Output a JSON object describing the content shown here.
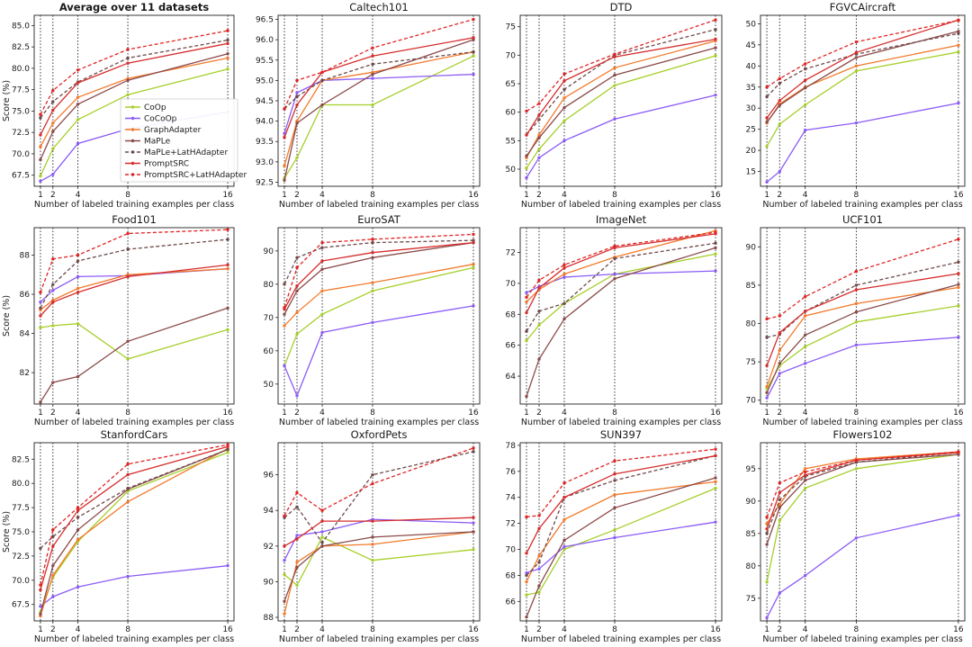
{
  "chart_data": {
    "type": "line",
    "x": [
      1,
      2,
      4,
      8,
      16
    ],
    "xlabel": "Number of labeled training examples per class",
    "ylabel": "Score (%)",
    "methods": [
      {
        "name": "CoOp",
        "color": "#a6cf2a",
        "dashed": false
      },
      {
        "name": "CoCoOp",
        "color": "#8b5cf6",
        "dashed": false
      },
      {
        "name": "GraphAdapter",
        "color": "#f27a2c",
        "dashed": false
      },
      {
        "name": "MaPLe",
        "color": "#8b4a4a",
        "dashed": false
      },
      {
        "name": "MaPLe+LatHAdapter",
        "color": "#6e4a4a",
        "dashed": true
      },
      {
        "name": "PromptSRC",
        "color": "#d62d2d",
        "dashed": false
      },
      {
        "name": "PromptSRC+LatHAdapter",
        "color": "#e02424",
        "dashed": true
      }
    ],
    "panels": [
      {
        "title": "Average over 11 datasets",
        "bold": true,
        "ylim": [
          66.2,
          86.2
        ],
        "yticks": [
          "67.5",
          "70.0",
          "72.5",
          "75.0",
          "77.5",
          "80.0",
          "82.5",
          "85.0"
        ],
        "legend": true,
        "series": [
          [
            67.4,
            70.6,
            74.0,
            76.9,
            79.9
          ],
          [
            66.8,
            67.6,
            71.2,
            72.9,
            74.9
          ],
          [
            70.8,
            73.6,
            76.6,
            78.8,
            81.2
          ],
          [
            69.3,
            72.6,
            75.8,
            78.6,
            81.7
          ],
          [
            74.2,
            76.1,
            78.4,
            81.2,
            83.3
          ],
          [
            72.2,
            75.1,
            78.3,
            80.6,
            82.9
          ],
          [
            74.6,
            77.4,
            79.8,
            82.2,
            84.4
          ]
        ]
      },
      {
        "title": "Caltech101",
        "bold": false,
        "ylim": [
          92.4,
          96.6
        ],
        "yticks": [
          "92.5",
          "93.0",
          "93.5",
          "94.0",
          "94.5",
          "95.0",
          "95.5",
          "96.0",
          "96.5"
        ],
        "series": [
          [
            92.6,
            93.1,
            94.4,
            94.4,
            95.6
          ],
          [
            93.7,
            94.7,
            95.0,
            95.05,
            95.15
          ],
          [
            92.9,
            94.0,
            95.0,
            95.2,
            95.7
          ],
          [
            92.55,
            93.95,
            94.4,
            95.15,
            96.0
          ],
          [
            94.3,
            94.6,
            95.0,
            95.4,
            95.7
          ],
          [
            93.6,
            94.4,
            95.2,
            95.6,
            96.05
          ],
          [
            94.3,
            95.0,
            95.2,
            95.8,
            96.5
          ]
        ]
      },
      {
        "title": "DTD",
        "bold": false,
        "ylim": [
          47.0,
          77.0
        ],
        "yticks": [
          "50",
          "55",
          "60",
          "65",
          "70",
          "75"
        ],
        "series": [
          [
            50.2,
            53.5,
            58.5,
            64.7,
            69.9
          ],
          [
            48.5,
            52.0,
            55.0,
            58.8,
            63.0
          ],
          [
            52.0,
            56.0,
            62.5,
            67.8,
            72.5
          ],
          [
            52.3,
            55.5,
            60.8,
            66.5,
            71.3
          ],
          [
            56.0,
            58.7,
            64.0,
            70.0,
            74.5
          ],
          [
            56.0,
            59.5,
            65.5,
            69.7,
            72.8
          ],
          [
            60.2,
            61.5,
            66.7,
            70.2,
            76.2
          ]
        ]
      },
      {
        "title": "FGVCAircraft",
        "bold": false,
        "ylim": [
          11.5,
          52.0
        ],
        "yticks": [
          "15",
          "20",
          "25",
          "30",
          "35",
          "40",
          "45",
          "50"
        ],
        "series": [
          [
            21.0,
            26.2,
            30.8,
            38.8,
            43.3
          ],
          [
            12.5,
            15.0,
            24.8,
            26.5,
            31.2
          ],
          [
            26.5,
            31.0,
            35.0,
            40.0,
            44.9
          ],
          [
            26.7,
            30.7,
            34.8,
            42.0,
            48.2
          ],
          [
            32.7,
            35.9,
            39.3,
            42.8,
            47.7
          ],
          [
            27.7,
            31.8,
            36.6,
            43.2,
            50.9
          ],
          [
            35.0,
            37.0,
            40.5,
            45.7,
            50.8
          ]
        ]
      },
      {
        "title": "Food101",
        "bold": false,
        "ylim": [
          80.4,
          89.4
        ],
        "yticks": [
          "82",
          "84",
          "86",
          "88"
        ],
        "series": [
          [
            84.3,
            84.4,
            84.5,
            82.7,
            84.2
          ],
          [
            85.6,
            86.2,
            86.9,
            86.95,
            87.3
          ],
          [
            85.2,
            85.7,
            86.3,
            87.0,
            87.3
          ],
          [
            80.5,
            81.5,
            81.8,
            83.6,
            85.3
          ],
          [
            85.3,
            86.5,
            87.7,
            88.3,
            88.8
          ],
          [
            84.9,
            85.6,
            86.1,
            86.9,
            87.5
          ],
          [
            86.1,
            87.8,
            88.0,
            89.1,
            89.3
          ]
        ]
      },
      {
        "title": "EuroSAT",
        "bold": false,
        "ylim": [
          44.0,
          97.0
        ],
        "yticks": [
          "50",
          "60",
          "70",
          "80",
          "90"
        ],
        "series": [
          [
            55.5,
            65.0,
            71.0,
            78.0,
            85.0
          ],
          [
            55.5,
            46.5,
            65.5,
            68.5,
            73.5
          ],
          [
            67.5,
            71.5,
            78.0,
            80.5,
            86.0
          ],
          [
            71.0,
            78.0,
            84.5,
            88.0,
            92.5
          ],
          [
            80.0,
            88.0,
            91.0,
            92.5,
            93.2
          ],
          [
            72.5,
            79.5,
            87.0,
            89.5,
            92.5
          ],
          [
            73.0,
            85.0,
            92.5,
            93.5,
            95.0
          ]
        ]
      },
      {
        "title": "ImageNet",
        "bold": false,
        "ylim": [
          62.2,
          73.6
        ],
        "yticks": [
          "64",
          "66",
          "68",
          "70",
          "72"
        ],
        "series": [
          [
            66.3,
            67.3,
            68.7,
            70.6,
            71.9
          ],
          [
            69.4,
            69.8,
            70.4,
            70.6,
            70.8
          ],
          [
            68.8,
            69.6,
            70.6,
            71.7,
            73.4
          ],
          [
            62.7,
            65.1,
            67.7,
            70.3,
            72.3
          ],
          [
            66.9,
            68.2,
            68.7,
            71.6,
            72.6
          ],
          [
            68.1,
            69.7,
            71.0,
            72.3,
            73.2
          ],
          [
            69.1,
            70.2,
            71.2,
            72.4,
            73.3
          ]
        ]
      },
      {
        "title": "UCF101",
        "bold": false,
        "ylim": [
          69.5,
          92.5
        ],
        "yticks": [
          "70",
          "75",
          "80",
          "85",
          "90"
        ],
        "series": [
          [
            71.5,
            74.5,
            77.0,
            80.2,
            82.3
          ],
          [
            70.3,
            73.5,
            74.8,
            77.2,
            78.2
          ],
          [
            71.8,
            76.5,
            81.0,
            82.6,
            84.7
          ],
          [
            71.0,
            74.8,
            78.5,
            81.5,
            85.1
          ],
          [
            78.2,
            78.6,
            81.6,
            85.0,
            88.0
          ],
          [
            74.5,
            78.8,
            81.6,
            84.4,
            86.5
          ],
          [
            80.6,
            81.0,
            83.5,
            86.8,
            91.0
          ]
        ]
      },
      {
        "title": "StanfordCars",
        "bold": false,
        "ylim": [
          65.8,
          84.2
        ],
        "yticks": [
          "67.5",
          "70.0",
          "72.5",
          "75.0",
          "77.5",
          "80.0",
          "82.5"
        ],
        "series": [
          [
            66.7,
            70.3,
            74.0,
            79.2,
            83.2
          ],
          [
            67.3,
            68.3,
            69.3,
            70.4,
            71.5
          ],
          [
            66.3,
            70.5,
            74.2,
            78.1,
            83.6
          ],
          [
            66.5,
            71.5,
            75.2,
            79.4,
            83.5
          ],
          [
            73.3,
            74.5,
            76.5,
            79.5,
            83.5
          ],
          [
            69.0,
            73.5,
            77.2,
            80.9,
            83.8
          ],
          [
            69.5,
            75.2,
            77.5,
            82.0,
            84.0
          ]
        ]
      },
      {
        "title": "OxfordPets",
        "bold": false,
        "ylim": [
          87.8,
          97.8
        ],
        "yticks": [
          "88",
          "90",
          "92",
          "94",
          "96"
        ],
        "series": [
          [
            90.4,
            89.8,
            92.5,
            91.2,
            91.8
          ],
          [
            91.2,
            92.6,
            92.8,
            93.5,
            93.3
          ],
          [
            88.2,
            91.1,
            92.0,
            92.1,
            92.8
          ],
          [
            88.9,
            90.8,
            92.0,
            92.5,
            92.8
          ],
          [
            93.6,
            94.2,
            92.2,
            96.0,
            97.3
          ],
          [
            92.0,
            92.4,
            93.4,
            93.4,
            93.6
          ],
          [
            93.7,
            95.0,
            94.0,
            95.5,
            97.5
          ]
        ]
      },
      {
        "title": "SUN397",
        "bold": false,
        "ylim": [
          64.5,
          78.2
        ],
        "yticks": [
          "66",
          "68",
          "70",
          "72",
          "74",
          "76",
          "78"
        ],
        "series": [
          [
            66.5,
            66.7,
            70.0,
            71.5,
            74.7
          ],
          [
            68.2,
            68.5,
            70.2,
            70.9,
            72.1
          ],
          [
            67.5,
            69.5,
            72.3,
            74.2,
            75.2
          ],
          [
            64.8,
            67.2,
            70.7,
            73.2,
            75.5
          ],
          [
            68.0,
            69.0,
            74.0,
            75.3,
            77.2
          ],
          [
            69.7,
            71.6,
            74.0,
            75.8,
            77.2
          ],
          [
            72.5,
            72.6,
            75.1,
            76.8,
            77.7
          ]
        ]
      },
      {
        "title": "Flowers102",
        "bold": false,
        "ylim": [
          71.5,
          99.0
        ],
        "yticks": [
          "75",
          "80",
          "85",
          "90",
          "95"
        ],
        "series": [
          [
            77.5,
            87.0,
            92.0,
            95.0,
            97.2
          ],
          [
            72.0,
            75.8,
            78.5,
            84.3,
            87.8
          ],
          [
            86.5,
            89.5,
            95.0,
            96.5,
            97.6
          ],
          [
            83.3,
            89.0,
            93.2,
            96.0,
            97.2
          ],
          [
            85.0,
            90.2,
            93.8,
            96.0,
            97.5
          ],
          [
            85.7,
            91.3,
            94.0,
            96.3,
            97.5
          ],
          [
            87.5,
            92.8,
            94.5,
            96.3,
            97.6
          ]
        ]
      }
    ]
  }
}
